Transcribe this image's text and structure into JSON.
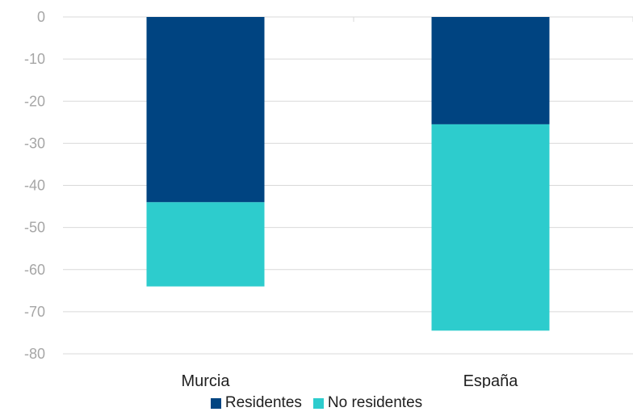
{
  "chart_data": {
    "type": "bar",
    "stacked": true,
    "categories": [
      "Murcia",
      "España"
    ],
    "series": [
      {
        "name": "Residentes",
        "values": [
          -44,
          -25.5
        ],
        "color": "#004481"
      },
      {
        "name": "No residentes",
        "values": [
          -20,
          -49
        ],
        "color": "#2dcccd"
      }
    ],
    "ylim": [
      -80,
      0
    ],
    "yticks": [
      0,
      -10,
      -20,
      -30,
      -40,
      -50,
      -60,
      -70,
      -80
    ],
    "grid": true,
    "legend_position": "bottom",
    "title": "",
    "xlabel": "",
    "ylabel": ""
  }
}
